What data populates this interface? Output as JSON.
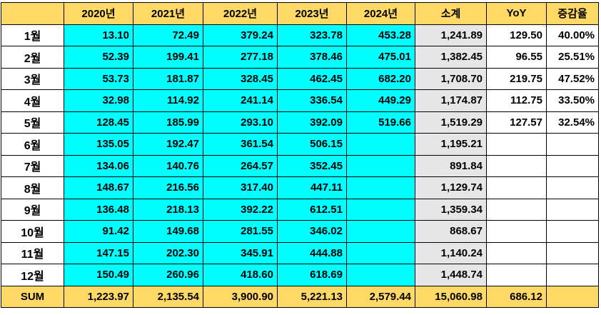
{
  "header": [
    "",
    "2020년",
    "2021년",
    "2022년",
    "2023년",
    "2024년",
    "소계",
    "YoY",
    "증감율"
  ],
  "rows": [
    {
      "label": "1월",
      "y2020": "13.10",
      "y2021": "72.49",
      "y2022": "379.24",
      "y2023": "323.78",
      "y2024": "453.28",
      "subtotal": "1,241.89",
      "yoy": "129.50",
      "rate": "40.00%"
    },
    {
      "label": "2월",
      "y2020": "52.39",
      "y2021": "199.41",
      "y2022": "277.18",
      "y2023": "378.46",
      "y2024": "475.01",
      "subtotal": "1,382.45",
      "yoy": "96.55",
      "rate": "25.51%"
    },
    {
      "label": "3월",
      "y2020": "53.73",
      "y2021": "181.87",
      "y2022": "328.45",
      "y2023": "462.45",
      "y2024": "682.20",
      "subtotal": "1,708.70",
      "yoy": "219.75",
      "rate": "47.52%"
    },
    {
      "label": "4월",
      "y2020": "32.98",
      "y2021": "114.92",
      "y2022": "241.14",
      "y2023": "336.54",
      "y2024": "449.29",
      "subtotal": "1,174.87",
      "yoy": "112.75",
      "rate": "33.50%"
    },
    {
      "label": "5월",
      "y2020": "128.45",
      "y2021": "185.99",
      "y2022": "293.10",
      "y2023": "392.09",
      "y2024": "519.66",
      "subtotal": "1,519.29",
      "yoy": "127.57",
      "rate": "32.54%"
    },
    {
      "label": "6월",
      "y2020": "135.05",
      "y2021": "192.47",
      "y2022": "361.54",
      "y2023": "506.15",
      "y2024": "",
      "subtotal": "1,195.21",
      "yoy": "",
      "rate": ""
    },
    {
      "label": "7월",
      "y2020": "134.06",
      "y2021": "140.76",
      "y2022": "264.57",
      "y2023": "352.45",
      "y2024": "",
      "subtotal": "891.84",
      "yoy": "",
      "rate": ""
    },
    {
      "label": "8월",
      "y2020": "148.67",
      "y2021": "216.56",
      "y2022": "317.40",
      "y2023": "447.11",
      "y2024": "",
      "subtotal": "1,129.74",
      "yoy": "",
      "rate": ""
    },
    {
      "label": "9월",
      "y2020": "136.48",
      "y2021": "218.13",
      "y2022": "392.22",
      "y2023": "612.51",
      "y2024": "",
      "subtotal": "1,359.34",
      "yoy": "",
      "rate": ""
    },
    {
      "label": "10월",
      "y2020": "91.42",
      "y2021": "149.68",
      "y2022": "281.55",
      "y2023": "346.02",
      "y2024": "",
      "subtotal": "868.67",
      "yoy": "",
      "rate": ""
    },
    {
      "label": "11월",
      "y2020": "147.15",
      "y2021": "202.30",
      "y2022": "345.91",
      "y2023": "444.88",
      "y2024": "",
      "subtotal": "1,140.24",
      "yoy": "",
      "rate": ""
    },
    {
      "label": "12월",
      "y2020": "150.49",
      "y2021": "260.96",
      "y2022": "418.60",
      "y2023": "618.69",
      "y2024": "",
      "subtotal": "1,448.74",
      "yoy": "",
      "rate": ""
    }
  ],
  "sum": {
    "label": "SUM",
    "y2020": "1,223.97",
    "y2021": "2,135.54",
    "y2022": "3,900.90",
    "y2023": "5,221.13",
    "y2024": "2,579.44",
    "subtotal": "15,060.98",
    "yoy": "686.12",
    "rate": ""
  },
  "colors": {
    "header_fill": "#FFD966",
    "data_fill": "#00FFFF",
    "subtotal_fill": "#E7E6E6",
    "border": "#000000"
  }
}
